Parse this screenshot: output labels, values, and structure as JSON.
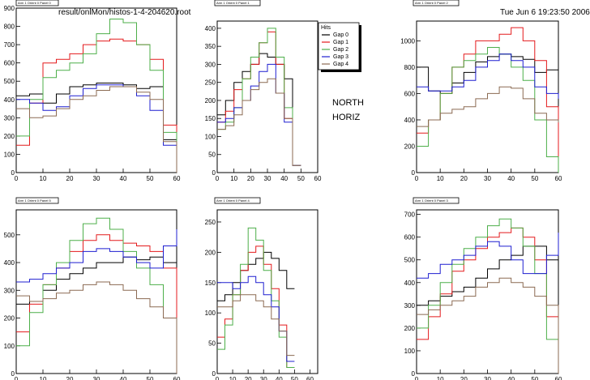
{
  "header": {
    "file": "result/onlMon/histos-1-4-204620.root",
    "timestamp": "Tue Jun  6 19:23:50 2006"
  },
  "annotation": {
    "line1": "NORTH",
    "line2": "HORIZ"
  },
  "legend": {
    "title": "Hits",
    "entries": [
      "Gap 0",
      "Gap 1",
      "Gap 2",
      "Gap 3",
      "Gap 4"
    ]
  },
  "colors": {
    "Gap 0": "#000000",
    "Gap 1": "#e41a1c",
    "Gap 2": "#4daf4a",
    "Gap 3": "#1f1fd0",
    "Gap 4": "#8b6a52",
    "frame": "#000000",
    "background": "#ffffff"
  },
  "chart_data": [
    {
      "type": "line",
      "title": "Arm 1 Orient 0 Panel 0",
      "xlim": [
        0,
        60
      ],
      "ylim": [
        0,
        900
      ],
      "xticks": [
        0,
        10,
        20,
        30,
        40,
        50,
        60
      ],
      "yticks": [
        0,
        100,
        200,
        300,
        400,
        500,
        600,
        700,
        800,
        900
      ],
      "x": [
        0,
        5,
        10,
        15,
        20,
        25,
        30,
        35,
        40,
        45,
        50,
        55,
        60
      ],
      "series": [
        {
          "name": "Gap 0",
          "values": [
            420,
            430,
            380,
            430,
            470,
            480,
            490,
            490,
            480,
            460,
            470,
            180,
            0
          ]
        },
        {
          "name": "Gap 1",
          "values": [
            150,
            380,
            600,
            620,
            650,
            700,
            720,
            730,
            720,
            700,
            620,
            260,
            0
          ]
        },
        {
          "name": "Gap 2",
          "values": [
            200,
            400,
            520,
            560,
            600,
            650,
            760,
            840,
            820,
            700,
            560,
            220,
            0
          ]
        },
        {
          "name": "Gap 3",
          "values": [
            400,
            380,
            340,
            360,
            420,
            460,
            480,
            480,
            470,
            420,
            340,
            150,
            0
          ]
        },
        {
          "name": "Gap 4",
          "values": [
            350,
            300,
            310,
            350,
            400,
            420,
            450,
            470,
            470,
            440,
            400,
            170,
            0
          ]
        }
      ]
    },
    {
      "type": "line",
      "title": "Arm 1 Orient 0 Panel 1",
      "xlim": [
        0,
        60
      ],
      "ylim": [
        0,
        420
      ],
      "xticks": [
        0,
        10,
        20,
        30,
        40,
        50,
        60
      ],
      "yticks": [
        0,
        50,
        100,
        150,
        200,
        250,
        300,
        350,
        400
      ],
      "x": [
        0,
        5,
        10,
        15,
        20,
        25,
        30,
        35,
        40,
        45
      ],
      "series": [
        {
          "name": "Gap 0",
          "values": [
            160,
            200,
            250,
            280,
            300,
            330,
            320,
            300,
            260,
            20
          ]
        },
        {
          "name": "Gap 1",
          "values": [
            140,
            170,
            230,
            260,
            300,
            360,
            390,
            300,
            150,
            20
          ]
        },
        {
          "name": "Gap 2",
          "values": [
            120,
            140,
            180,
            260,
            320,
            360,
            400,
            320,
            180,
            20
          ]
        },
        {
          "name": "Gap 3",
          "values": [
            140,
            150,
            180,
            200,
            240,
            280,
            300,
            220,
            140,
            20
          ]
        },
        {
          "name": "Gap 4",
          "values": [
            120,
            130,
            160,
            200,
            230,
            250,
            260,
            220,
            150,
            20
          ]
        }
      ]
    },
    {
      "type": "line",
      "title": "Arm 1 Orient 0 Panel 2",
      "xlim": [
        0,
        60
      ],
      "ylim": [
        0,
        1150
      ],
      "xticks": [
        0,
        10,
        20,
        30,
        40,
        50,
        60
      ],
      "yticks": [
        0,
        200,
        400,
        600,
        800,
        1000
      ],
      "x": [
        0,
        5,
        10,
        15,
        20,
        25,
        30,
        35,
        40,
        45,
        50,
        55,
        60
      ],
      "series": [
        {
          "name": "Gap 0",
          "values": [
            800,
            620,
            600,
            680,
            760,
            840,
            880,
            900,
            880,
            860,
            760,
            780,
            600
          ]
        },
        {
          "name": "Gap 1",
          "values": [
            300,
            400,
            600,
            800,
            900,
            1000,
            1000,
            1050,
            1100,
            1000,
            850,
            500,
            0
          ]
        },
        {
          "name": "Gap 2",
          "values": [
            200,
            400,
            600,
            800,
            850,
            900,
            950,
            900,
            800,
            700,
            400,
            120,
            0
          ]
        },
        {
          "name": "Gap 3",
          "values": [
            650,
            620,
            620,
            650,
            700,
            800,
            850,
            900,
            850,
            800,
            650,
            600,
            560
          ]
        },
        {
          "name": "Gap 4",
          "values": [
            350,
            400,
            450,
            480,
            500,
            560,
            600,
            650,
            640,
            560,
            450,
            400,
            380
          ]
        }
      ]
    },
    {
      "type": "line",
      "title": "Arm 1 Orient 0 Panel 5",
      "xlim": [
        0,
        60
      ],
      "ylim": [
        0,
        590
      ],
      "xticks": [
        0,
        10,
        20,
        30,
        40,
        50,
        60
      ],
      "yticks": [
        0,
        100,
        200,
        300,
        400,
        500
      ],
      "x": [
        0,
        5,
        10,
        15,
        20,
        25,
        30,
        35,
        40,
        45,
        50,
        55,
        60
      ],
      "series": [
        {
          "name": "Gap 0",
          "values": [
            250,
            260,
            300,
            340,
            360,
            380,
            400,
            400,
            420,
            410,
            420,
            400,
            0
          ]
        },
        {
          "name": "Gap 1",
          "values": [
            150,
            250,
            320,
            380,
            440,
            480,
            500,
            480,
            470,
            460,
            440,
            380,
            0
          ]
        },
        {
          "name": "Gap 2",
          "values": [
            100,
            220,
            320,
            400,
            480,
            540,
            560,
            520,
            440,
            380,
            320,
            200,
            0
          ]
        },
        {
          "name": "Gap 3",
          "values": [
            330,
            340,
            360,
            380,
            400,
            440,
            450,
            440,
            420,
            400,
            380,
            460,
            520
          ]
        },
        {
          "name": "Gap 4",
          "values": [
            280,
            260,
            270,
            290,
            300,
            320,
            330,
            320,
            300,
            270,
            240,
            200,
            0
          ]
        }
      ]
    },
    {
      "type": "line",
      "title": "Arm 1 Orient 0 Panel 4",
      "xlim": [
        0,
        65
      ],
      "ylim": [
        0,
        270
      ],
      "xticks": [
        0,
        10,
        20,
        30,
        40,
        50,
        60
      ],
      "yticks": [
        0,
        50,
        100,
        150,
        200,
        250
      ],
      "x": [
        0,
        5,
        10,
        15,
        20,
        25,
        30,
        35,
        40,
        45
      ],
      "series": [
        {
          "name": "Gap 0",
          "values": [
            120,
            130,
            150,
            170,
            180,
            190,
            200,
            190,
            170,
            140
          ]
        },
        {
          "name": "Gap 1",
          "values": [
            60,
            90,
            130,
            170,
            200,
            210,
            180,
            140,
            80,
            10
          ]
        },
        {
          "name": "Gap 2",
          "values": [
            40,
            80,
            130,
            180,
            240,
            220,
            170,
            120,
            60,
            10
          ]
        },
        {
          "name": "Gap 3",
          "values": [
            150,
            150,
            140,
            150,
            160,
            150,
            130,
            110,
            70,
            20
          ]
        },
        {
          "name": "Gap 4",
          "values": [
            110,
            110,
            120,
            130,
            130,
            120,
            110,
            90,
            70,
            30
          ]
        }
      ]
    },
    {
      "type": "line",
      "title": "Arm 1 Orient 0 Panel 3",
      "xlim": [
        0,
        60
      ],
      "ylim": [
        0,
        720
      ],
      "xticks": [
        0,
        10,
        20,
        30,
        40,
        50,
        60
      ],
      "yticks": [
        0,
        100,
        200,
        300,
        400,
        500,
        600,
        700
      ],
      "x": [
        0,
        5,
        10,
        15,
        20,
        25,
        30,
        35,
        40,
        45,
        50,
        55,
        60
      ],
      "series": [
        {
          "name": "Gap 0",
          "values": [
            300,
            320,
            340,
            360,
            380,
            420,
            460,
            500,
            520,
            560,
            560,
            500,
            0
          ]
        },
        {
          "name": "Gap 1",
          "values": [
            150,
            250,
            350,
            450,
            500,
            550,
            600,
            620,
            640,
            600,
            500,
            250,
            0
          ]
        },
        {
          "name": "Gap 2",
          "values": [
            200,
            300,
            400,
            480,
            550,
            600,
            650,
            680,
            640,
            560,
            440,
            150,
            0
          ]
        },
        {
          "name": "Gap 3",
          "values": [
            420,
            440,
            480,
            500,
            520,
            560,
            580,
            560,
            500,
            440,
            440,
            520,
            620
          ]
        },
        {
          "name": "Gap 4",
          "values": [
            260,
            280,
            300,
            320,
            340,
            380,
            400,
            420,
            400,
            380,
            340,
            300,
            0
          ]
        }
      ]
    }
  ]
}
